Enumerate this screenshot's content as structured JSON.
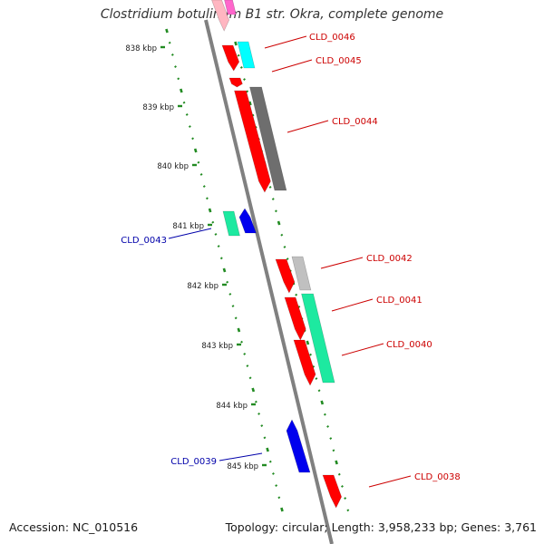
{
  "title": "Clostridium botulinum B1 str. Okra, complete genome",
  "footer": {
    "accession": "Accession: NC_010516",
    "summary": "Topology: circular; Length: 3,958,233 bp; Genes: 3,761"
  },
  "scale_labels": [
    "838 kbp",
    "839 kbp",
    "840 kbp",
    "841 kbp",
    "842 kbp",
    "843 kbp",
    "844 kbp",
    "845 kbp"
  ],
  "genes": [
    {
      "label": "CLD_0046",
      "color": "#cc0000"
    },
    {
      "label": "CLD_0045",
      "color": "#cc0000"
    },
    {
      "label": "CLD_0044",
      "color": "#cc0000"
    },
    {
      "label": "CLD_0043",
      "color": "#0000aa"
    },
    {
      "label": "CLD_0042",
      "color": "#cc0000"
    },
    {
      "label": "CLD_0041",
      "color": "#cc0000"
    },
    {
      "label": "CLD_0040",
      "color": "#cc0000"
    },
    {
      "label": "CLD_0039",
      "color": "#0000aa"
    },
    {
      "label": "CLD_0038",
      "color": "#cc0000"
    }
  ],
  "colors": {
    "backbone": "#808080",
    "tick_green": "#228b22",
    "red_feature": "#ff0000",
    "cyan_feature": "#00ffff",
    "gray_feature": "#6e6e6e",
    "light_gray_feature": "#c0c0c0",
    "green_feature": "#1de9a0",
    "blue_feature": "#0000ee",
    "pink_feature": "#ffb6c1",
    "magenta_feature": "#ff66cc"
  }
}
